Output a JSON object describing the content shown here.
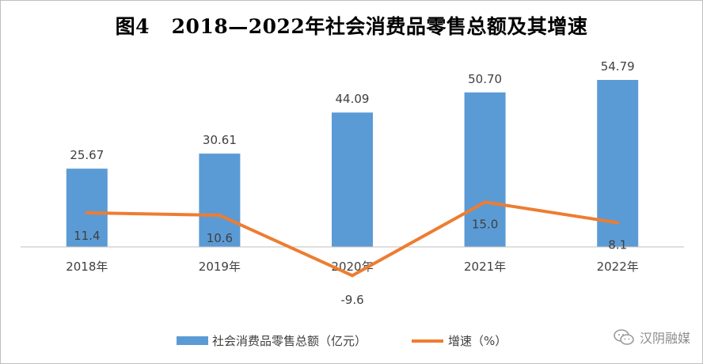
{
  "chart_data": {
    "type": "bar",
    "title": "图4   2018—2022年社会消费品零售总额及其增速",
    "categories": [
      "2018年",
      "2019年",
      "2020年",
      "2021年",
      "2022年"
    ],
    "series": [
      {
        "name": "社会消费品零售总额（亿元）",
        "type": "bar",
        "values": [
          25.67,
          30.61,
          44.09,
          50.7,
          54.79
        ],
        "labels": [
          "25.67",
          "30.61",
          "44.09",
          "50.70",
          "54.79"
        ],
        "color": "#5b9bd5"
      },
      {
        "name": "增速（%）",
        "type": "line",
        "values": [
          11.4,
          10.6,
          -9.6,
          15.0,
          8.1
        ],
        "labels": [
          "11.4",
          "10.6",
          "-9.6",
          "15.0",
          "8.1"
        ],
        "color": "#ed7d31"
      }
    ],
    "legend_position": "bottom",
    "grid": false
  },
  "watermark": {
    "text": "汉阴融媒",
    "icon": "wechat-icon"
  }
}
